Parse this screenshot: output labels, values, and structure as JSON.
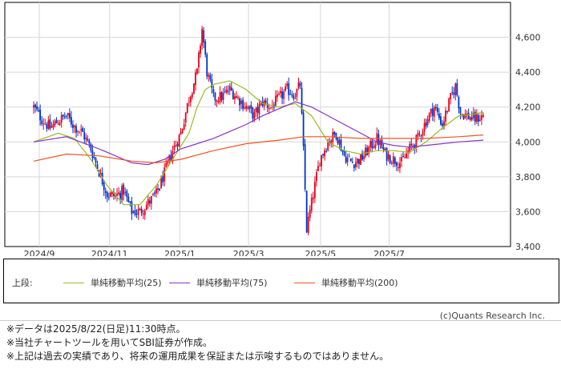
{
  "chart_data": {
    "type": "candlestick",
    "x_ticks": [
      "2024/9",
      "2024/11",
      "2025/1",
      "2025/3",
      "2025/5",
      "2025/7"
    ],
    "y_ticks": [
      "3,400",
      "3,600",
      "3,800",
      "4,000",
      "4,200",
      "4,400",
      "4,600"
    ],
    "ylim": [
      3400,
      4800
    ],
    "grid": true,
    "up_color": "#e8001c",
    "down_color": "#0033cc",
    "close_path": [
      [
        0,
        4200
      ],
      [
        5,
        4130
      ],
      [
        10,
        4080
      ],
      [
        15,
        4120
      ],
      [
        20,
        4150
      ],
      [
        25,
        4090
      ],
      [
        30,
        4050
      ],
      [
        35,
        3960
      ],
      [
        40,
        3830
      ],
      [
        45,
        3700
      ],
      [
        50,
        3690
      ],
      [
        55,
        3720
      ],
      [
        60,
        3600
      ],
      [
        65,
        3600
      ],
      [
        70,
        3650
      ],
      [
        75,
        3700
      ],
      [
        80,
        3820
      ],
      [
        85,
        3950
      ],
      [
        90,
        4050
      ],
      [
        95,
        4250
      ],
      [
        100,
        4400
      ],
      [
        103,
        4650
      ],
      [
        106,
        4400
      ],
      [
        110,
        4250
      ],
      [
        115,
        4260
      ],
      [
        120,
        4300
      ],
      [
        125,
        4250
      ],
      [
        130,
        4200
      ],
      [
        135,
        4150
      ],
      [
        140,
        4230
      ],
      [
        145,
        4200
      ],
      [
        150,
        4250
      ],
      [
        155,
        4300
      ],
      [
        160,
        4270
      ],
      [
        163,
        4330
      ],
      [
        165,
        3950
      ],
      [
        167,
        3500
      ],
      [
        170,
        3650
      ],
      [
        175,
        3900
      ],
      [
        180,
        4000
      ],
      [
        185,
        4050
      ],
      [
        190,
        3920
      ],
      [
        195,
        3880
      ],
      [
        200,
        3900
      ],
      [
        205,
        3960
      ],
      [
        210,
        4020
      ],
      [
        215,
        3930
      ],
      [
        220,
        3900
      ],
      [
        225,
        3880
      ],
      [
        230,
        3960
      ],
      [
        235,
        4020
      ],
      [
        240,
        4120
      ],
      [
        245,
        4200
      ],
      [
        250,
        4100
      ],
      [
        255,
        4250
      ],
      [
        258,
        4320
      ],
      [
        261,
        4170
      ],
      [
        265,
        4150
      ],
      [
        270,
        4130
      ],
      [
        275,
        4150
      ]
    ],
    "moving_averages": [
      {
        "name": "単純移動平均(25)",
        "color": "#99bb22",
        "points": [
          [
            0,
            4000
          ],
          [
            15,
            4050
          ],
          [
            25,
            4020
          ],
          [
            35,
            3900
          ],
          [
            45,
            3750
          ],
          [
            55,
            3640
          ],
          [
            65,
            3640
          ],
          [
            75,
            3750
          ],
          [
            85,
            3900
          ],
          [
            95,
            4050
          ],
          [
            100,
            4200
          ],
          [
            105,
            4300
          ],
          [
            110,
            4330
          ],
          [
            120,
            4350
          ],
          [
            130,
            4300
          ],
          [
            140,
            4220
          ],
          [
            150,
            4200
          ],
          [
            160,
            4220
          ],
          [
            170,
            4150
          ],
          [
            180,
            4000
          ],
          [
            190,
            3950
          ],
          [
            200,
            3930
          ],
          [
            210,
            3950
          ],
          [
            220,
            3950
          ],
          [
            230,
            3940
          ],
          [
            240,
            4000
          ],
          [
            250,
            4080
          ],
          [
            260,
            4150
          ],
          [
            270,
            4160
          ],
          [
            275,
            4170
          ]
        ]
      },
      {
        "name": "単純移動平均(75)",
        "color": "#8833cc",
        "points": [
          [
            0,
            4000
          ],
          [
            20,
            4030
          ],
          [
            40,
            3960
          ],
          [
            60,
            3880
          ],
          [
            70,
            3870
          ],
          [
            80,
            3900
          ],
          [
            90,
            3960
          ],
          [
            100,
            3990
          ],
          [
            110,
            4020
          ],
          [
            120,
            4060
          ],
          [
            130,
            4100
          ],
          [
            140,
            4150
          ],
          [
            150,
            4190
          ],
          [
            160,
            4230
          ],
          [
            170,
            4200
          ],
          [
            180,
            4150
          ],
          [
            190,
            4100
          ],
          [
            200,
            4050
          ],
          [
            210,
            4000
          ],
          [
            220,
            3980
          ],
          [
            230,
            3970
          ],
          [
            240,
            3980
          ],
          [
            250,
            3990
          ],
          [
            260,
            4000
          ],
          [
            275,
            4010
          ]
        ]
      },
      {
        "name": "単純移動平均(200)",
        "color": "#ee5522",
        "points": [
          [
            0,
            3890
          ],
          [
            20,
            3930
          ],
          [
            40,
            3920
          ],
          [
            60,
            3890
          ],
          [
            75,
            3880
          ],
          [
            90,
            3900
          ],
          [
            110,
            3950
          ],
          [
            130,
            3990
          ],
          [
            150,
            4010
          ],
          [
            165,
            4030
          ],
          [
            180,
            4030
          ],
          [
            200,
            4020
          ],
          [
            220,
            4020
          ],
          [
            240,
            4020
          ],
          [
            260,
            4030
          ],
          [
            275,
            4040
          ]
        ]
      }
    ]
  },
  "legend": {
    "prefix": "上段:",
    "items": [
      "単純移動平均(25)",
      "単純移動平均(75)",
      "単純移動平均(200)"
    ]
  },
  "credit": "(c)Quants Research Inc.",
  "notes": [
    "※データは2025/8/22(日足)11:30時点。",
    "※当社チャートツールを用いてSBI証券が作成。",
    "※上記は過去の実績であり、将来の運用成果を保証または示唆するものではありません。"
  ]
}
